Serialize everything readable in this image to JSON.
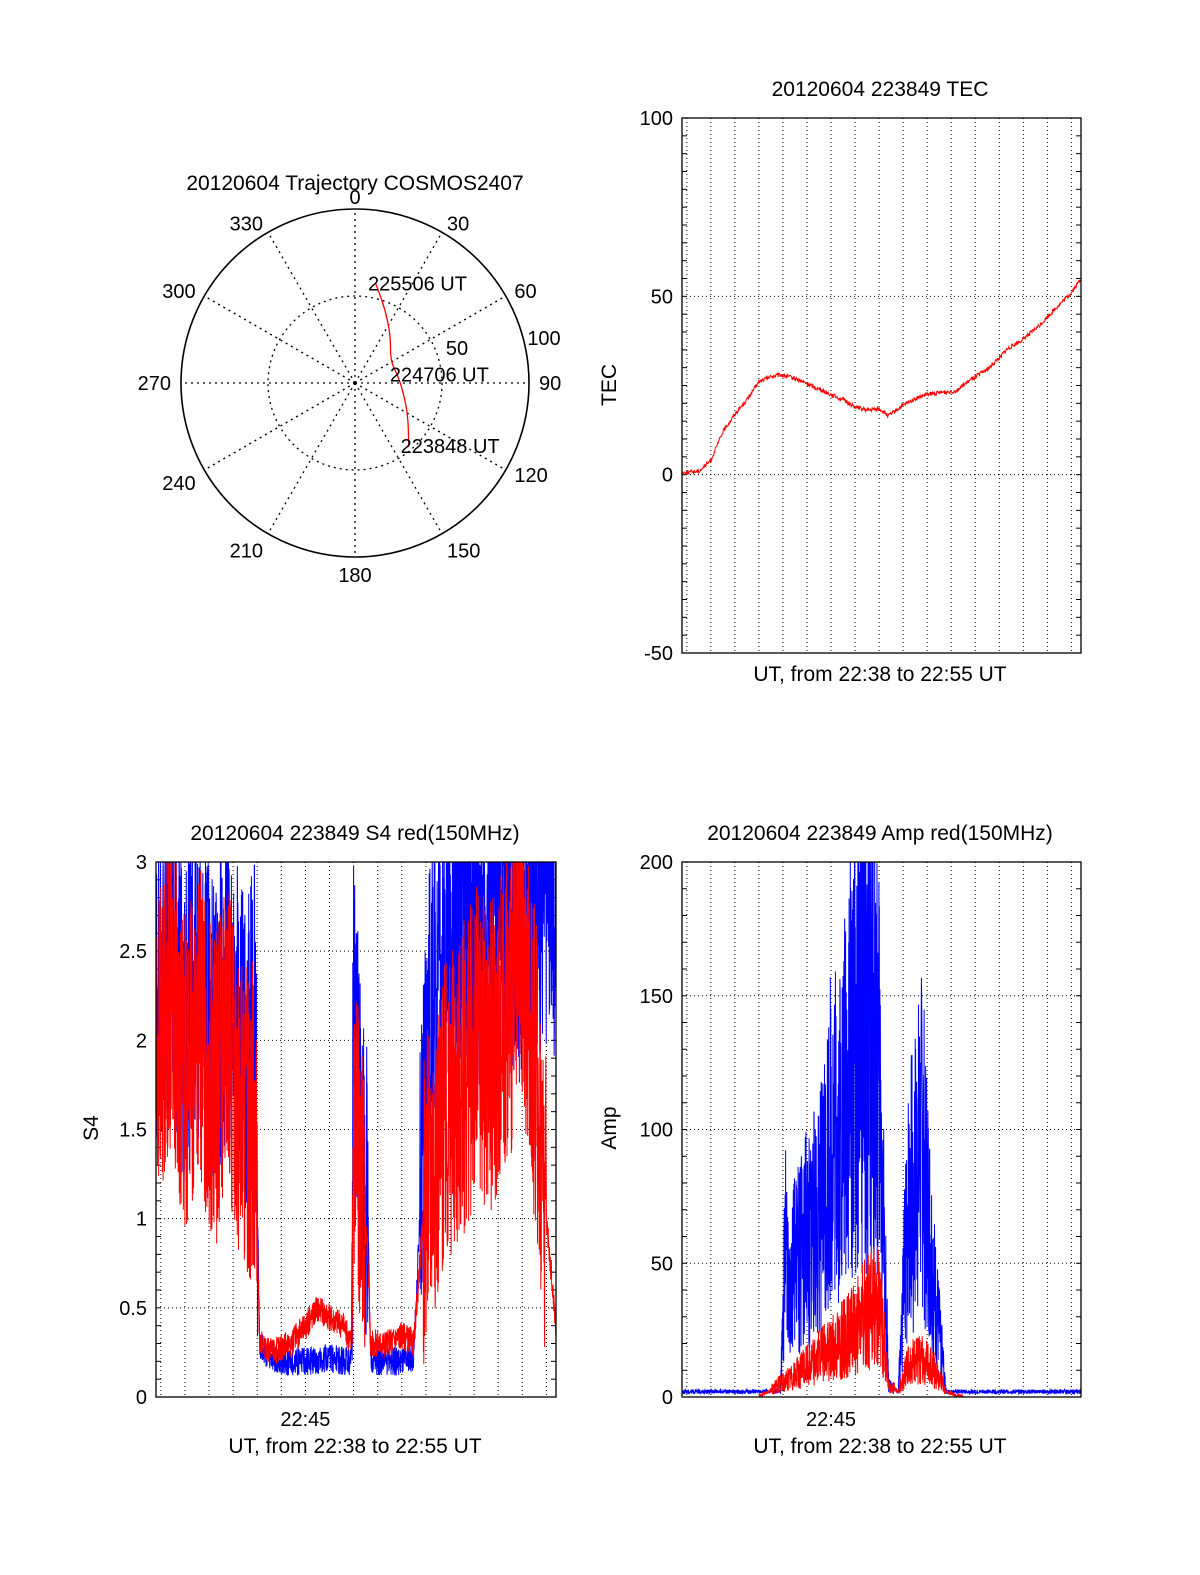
{
  "chart_data": [
    {
      "type": "polar",
      "title": "20120604 Trajectory COSMOS2407",
      "angle_labels": [
        "0",
        "30",
        "60",
        "90",
        "120",
        "150",
        "180",
        "210",
        "240",
        "270",
        "300",
        "330"
      ],
      "radius_labels": [
        "50",
        "100"
      ],
      "rlim": [
        0,
        100
      ],
      "grid": true,
      "series": [
        {
          "color": "#ff0000",
          "points": [
            {
              "az": 12,
              "r": 58,
              "label": "225506 UT"
            },
            {
              "az": 22,
              "r": 46
            },
            {
              "az": 37,
              "r": 34
            },
            {
              "az": 58,
              "r": 24
            },
            {
              "az": 80,
              "r": 25,
              "label": "224706 UT"
            },
            {
              "az": 100,
              "r": 28
            },
            {
              "az": 122,
              "r": 36
            },
            {
              "az": 140,
              "r": 48,
              "label": "223848 UT"
            }
          ]
        }
      ]
    },
    {
      "type": "line",
      "title": "20120604 223849 TEC",
      "xlabel": "UT, from 22:38 to 22:55 UT",
      "ylabel": "TEC",
      "xlim": [
        38.8,
        55.4
      ],
      "ylim": [
        -50,
        100
      ],
      "yticks": [
        "-50",
        "0",
        "50",
        "100"
      ],
      "grid": true,
      "series": [
        {
          "color": "#ff0000",
          "x": [
            38.8,
            39.5,
            40.0,
            40.5,
            41.0,
            41.5,
            42.0,
            42.5,
            42.9,
            43.5,
            44.0,
            44.5,
            45.0,
            45.5,
            46.0,
            46.5,
            47.0,
            47.4,
            47.9,
            48.4,
            49.0,
            49.6,
            50.2,
            50.9,
            51.6,
            52.3,
            53.0,
            53.7,
            54.4,
            55.0,
            55.4
          ],
          "y": [
            0.5,
            1,
            4,
            12,
            17,
            21,
            26,
            27.5,
            28,
            27,
            25.5,
            24,
            22.5,
            21,
            19,
            18,
            18.5,
            16.5,
            19,
            21,
            22.5,
            23,
            23.5,
            27,
            30,
            35,
            38,
            42,
            47,
            51,
            55
          ]
        }
      ]
    },
    {
      "type": "line",
      "title": "20120604 223849 S4 red(150MHz)",
      "xlabel": "UT, from 22:38 to 22:55 UT",
      "ylabel": "S4",
      "xtick_labels": [
        "22:45"
      ],
      "xlim": [
        38.8,
        55.4
      ],
      "ylim": [
        0,
        3
      ],
      "yticks": [
        "0",
        "0.5",
        "1",
        "1.5",
        "2",
        "2.5",
        "3"
      ],
      "grid": true,
      "series": [
        {
          "color": "#0000ff",
          "x": [
            38.8,
            39.4,
            40.0,
            40.6,
            41.2,
            41.8,
            42.5,
            42.9,
            43.1,
            43.6,
            44.4,
            45.2,
            46.0,
            46.6,
            46.9,
            47.0,
            47.4,
            47.6,
            47.7,
            48.4,
            49.0,
            49.5,
            50.0,
            50.4,
            51.0,
            51.6,
            52.2,
            52.8,
            53.4,
            54.0,
            54.6,
            55.2,
            55.4
          ],
          "y": [
            2.2,
            2.5,
            2.1,
            2.3,
            2.0,
            2.4,
            1.9,
            2.1,
            0.3,
            0.2,
            0.2,
            0.2,
            0.22,
            0.2,
            0.2,
            2.2,
            1.3,
            1.0,
            0.2,
            0.2,
            0.2,
            0.22,
            1.8,
            2.5,
            2.6,
            2.8,
            2.5,
            2.7,
            2.8,
            2.6,
            2.8,
            2.9,
            2.7
          ]
        },
        {
          "color": "#ff0000",
          "x": [
            38.8,
            39.4,
            40.0,
            40.6,
            41.2,
            41.8,
            42.5,
            42.9,
            43.1,
            43.6,
            44.4,
            45.0,
            45.5,
            46.0,
            46.6,
            46.9,
            47.0,
            47.4,
            47.6,
            47.7,
            48.4,
            49.0,
            49.5,
            50.0,
            50.4,
            51.0,
            51.6,
            52.2,
            52.8,
            53.4,
            54.0,
            54.6,
            55.0,
            55.4
          ],
          "y": [
            1.9,
            2.3,
            1.8,
            2.1,
            1.7,
            2.0,
            1.5,
            1.6,
            0.3,
            0.25,
            0.3,
            0.4,
            0.5,
            0.45,
            0.4,
            0.3,
            1.5,
            1.1,
            0.8,
            0.3,
            0.3,
            0.35,
            0.3,
            1.2,
            1.4,
            1.6,
            1.8,
            2.0,
            1.9,
            2.2,
            2.4,
            1.8,
            1.0,
            0.4
          ]
        }
      ]
    },
    {
      "type": "line",
      "title": "20120604 223849 Amp red(150MHz)",
      "xlabel": "UT, from 22:38 to 22:55 UT",
      "ylabel": "Amp",
      "xtick_labels": [
        "22:45"
      ],
      "xlim": [
        38.8,
        55.4
      ],
      "ylim": [
        0,
        200
      ],
      "yticks": [
        "0",
        "50",
        "100",
        "150",
        "200"
      ],
      "grid": true,
      "series": [
        {
          "color": "#0000ff",
          "x": [
            38.8,
            40.0,
            41.0,
            42.0,
            42.9,
            43.1,
            43.5,
            44.0,
            44.5,
            45.0,
            45.5,
            46.0,
            46.5,
            47.0,
            47.4,
            47.8,
            48.2,
            48.8,
            49.3,
            49.8,
            50.0,
            51.0,
            52.0,
            53.0,
            54.0,
            55.4
          ],
          "y": [
            2,
            2,
            2,
            2,
            2,
            55,
            48,
            60,
            65,
            95,
            100,
            140,
            148,
            115,
            4,
            2,
            70,
            95,
            40,
            2,
            2,
            2,
            2,
            2,
            2,
            2
          ]
        },
        {
          "color": "#ff0000",
          "x": [
            42.0,
            42.9,
            43.5,
            44.0,
            44.5,
            45.0,
            45.5,
            46.0,
            46.5,
            47.0,
            47.4,
            47.8,
            48.2,
            48.8,
            49.3,
            49.8,
            50.5
          ],
          "y": [
            0,
            5,
            8,
            12,
            15,
            18,
            22,
            25,
            32,
            35,
            5,
            2,
            12,
            14,
            10,
            2,
            0
          ]
        }
      ]
    }
  ]
}
